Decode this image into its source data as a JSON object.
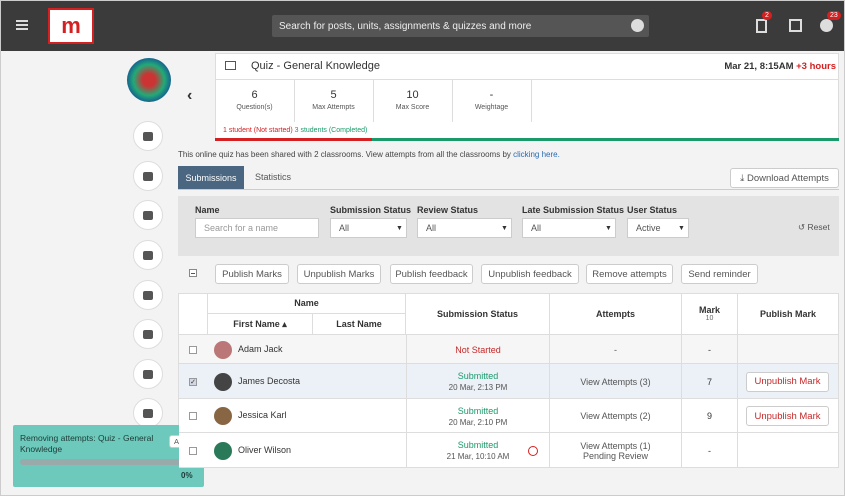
{
  "nav": {
    "search": "Search for posts, units, assignments & quizzes and more",
    "badges": [
      2,
      23
    ]
  },
  "quiz": {
    "title": "Quiz - General Knowledge",
    "date": "Mar 21, 8:15AM",
    "offset": "+3 hours",
    "stats": [
      {
        "value": "6",
        "label": "Question(s)"
      },
      {
        "value": "5",
        "label": "Max Attempts"
      },
      {
        "value": "10",
        "label": "Max Score"
      },
      {
        "value": "-",
        "label": "Weightage"
      }
    ],
    "not_started": "1 student (Not started)",
    "completed": "3 students (Completed)"
  },
  "share_note": "This online quiz has been shared with 2 classrooms. View attempts from all the classrooms by",
  "share_link": "clicking here.",
  "tabs": [
    "Submissions",
    "Statistics"
  ],
  "download": "Download Attempts",
  "filters": {
    "name_label": "Name",
    "name_placeholder": "Search for a name",
    "fields": [
      {
        "label": "Submission Status",
        "value": "All"
      },
      {
        "label": "Review Status",
        "value": "All"
      },
      {
        "label": "Late Submission Status",
        "value": "All"
      },
      {
        "label": "User Status",
        "value": "Active"
      }
    ],
    "reset": "Reset"
  },
  "actions": [
    "Publish Marks",
    "Unpublish Marks",
    "Publish feedback",
    "Unpublish feedback",
    "Remove attempts",
    "Send reminder"
  ],
  "table": {
    "name_group": "Name",
    "headers": [
      "First Name ▴",
      "Last Name",
      "Submission Status",
      "Attempts",
      "Mark",
      "Publish Mark"
    ],
    "max_mark": 10,
    "rows": [
      {
        "name": "Adam Jack",
        "status": "Not Started",
        "attempts": "-",
        "mark": "-"
      },
      {
        "name": "James Decosta",
        "status": "Submitted",
        "date": "20 Mar, 2:13 PM",
        "attempts": "View Attempts (3)",
        "mark": 7,
        "publish": "Unpublish Mark",
        "checked": true
      },
      {
        "name": "Jessica Karl",
        "status": "Submitted",
        "date": "20 Mar, 2:10 PM",
        "attempts": "View Attempts (2)",
        "mark": 9,
        "publish": "Unpublish Mark"
      },
      {
        "name": "Oliver Wilson",
        "status": "Submitted",
        "date": "21 Mar, 10:10 AM",
        "attempts": "View Attempts (1)",
        "review": "Pending Review",
        "mark": "-"
      }
    ]
  },
  "toast": {
    "message": "Removing attempts: Quiz - General Knowledge",
    "abort": "Abort",
    "progress": "0%"
  }
}
